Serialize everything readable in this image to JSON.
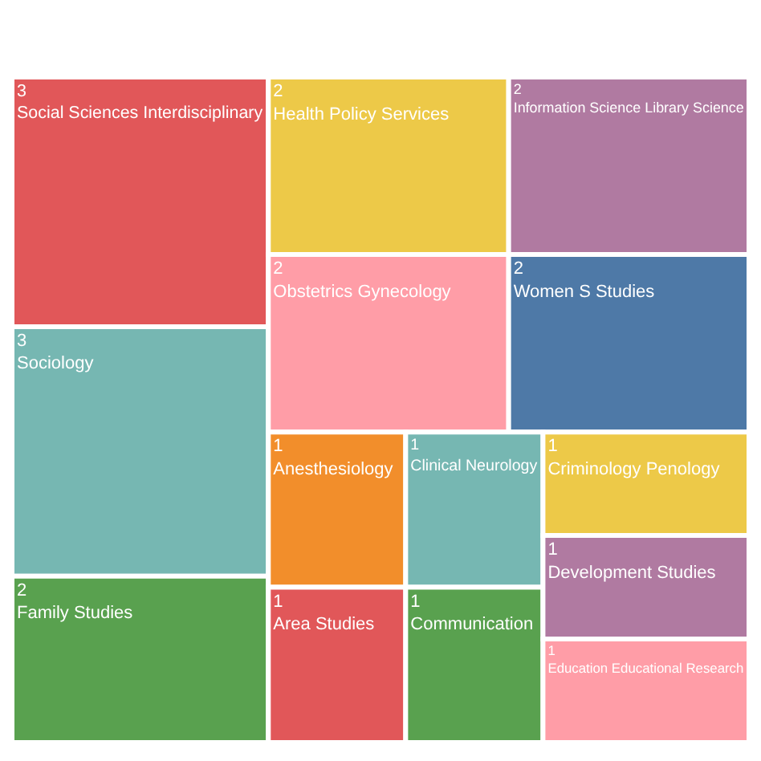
{
  "chart_data": {
    "type": "other",
    "data_labels": true,
    "categories": [
      "Social Sciences Interdisciplinary",
      "Sociology",
      "Family Studies",
      "Health Policy Services",
      "Information Science Library Science",
      "Obstetrics Gynecology",
      "Women S Studies",
      "Anesthesiology",
      "Area Studies",
      "Clinical Neurology",
      "Communication",
      "Criminology Penology",
      "Development Studies",
      "Education Educational Research"
    ],
    "values": [
      3,
      3,
      2,
      2,
      2,
      2,
      2,
      1,
      1,
      1,
      1,
      1,
      1,
      1
    ],
    "colors": [
      "#e15759",
      "#76b7b2",
      "#59a14f",
      "#edc948",
      "#b07aa1",
      "#ff9da7",
      "#4e79a7",
      "#f28e2b",
      "#e15759",
      "#76b7b2",
      "#59a14f",
      "#edc948",
      "#b07aa1",
      "#ff9da7"
    ]
  }
}
